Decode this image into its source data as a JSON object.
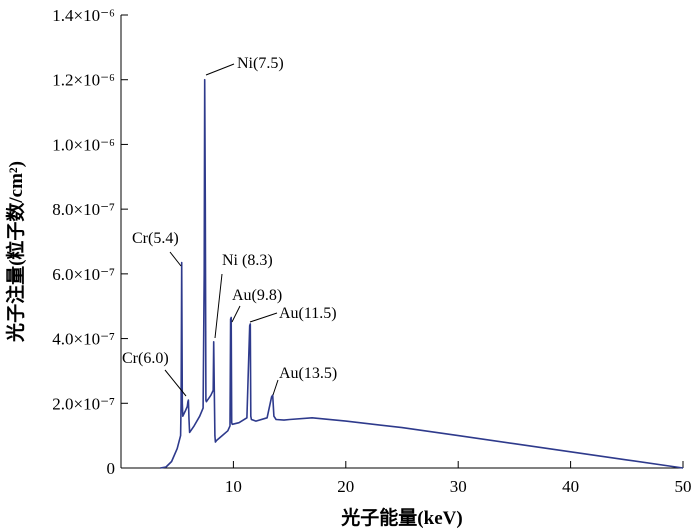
{
  "chart_data": {
    "type": "line",
    "title": "",
    "xlabel": "光子能量(keV)",
    "ylabel": "光子注量(粒子数/cm²)",
    "xlim": [
      0,
      50
    ],
    "ylim": [
      0,
      1.4e-06
    ],
    "x_ticks": [
      {
        "value": 10,
        "label": "10"
      },
      {
        "value": 20,
        "label": "20"
      },
      {
        "value": 30,
        "label": "30"
      },
      {
        "value": 40,
        "label": "40"
      },
      {
        "value": 50,
        "label": "50"
      }
    ],
    "y_ticks": [
      {
        "value": 0,
        "label": "0"
      },
      {
        "value": 2e-07,
        "label": "2.0×10⁻⁷"
      },
      {
        "value": 4e-07,
        "label": "4.0×10⁻⁷"
      },
      {
        "value": 6e-07,
        "label": "6.0×10⁻⁷"
      },
      {
        "value": 8e-07,
        "label": "8.0×10⁻⁷"
      },
      {
        "value": 1e-06,
        "label": "1.0×10⁻⁶"
      },
      {
        "value": 1.2e-06,
        "label": "1.2×10⁻⁶"
      },
      {
        "value": 1.4e-06,
        "label": "1.4×10⁻⁶"
      }
    ],
    "series": [
      {
        "color": "#2e3a8c",
        "x": [
          3.5,
          4.0,
          4.5,
          5.0,
          5.3,
          5.35,
          5.4,
          5.45,
          5.5,
          5.7,
          5.9,
          5.95,
          6.0,
          6.05,
          6.1,
          6.5,
          7.0,
          7.3,
          7.4,
          7.45,
          7.5,
          7.55,
          7.6,
          7.7,
          7.8,
          8.0,
          8.2,
          8.25,
          8.3,
          8.35,
          8.4,
          8.5,
          9.0,
          9.5,
          9.7,
          9.75,
          9.8,
          9.85,
          9.9,
          10.5,
          11.2,
          11.45,
          11.5,
          11.55,
          11.6,
          12.0,
          13.0,
          13.4,
          13.5,
          13.6,
          13.8,
          14.5,
          15.0,
          17.0,
          20.0,
          25.0,
          30.0,
          35.0,
          40.0,
          45.0,
          50.0
        ],
        "y": [
          0.0,
          3e-09,
          2e-08,
          6e-08,
          1e-07,
          2e-07,
          6.35e-07,
          2e-07,
          1.6e-07,
          1.75e-07,
          1.9e-07,
          2.05e-07,
          2.1e-07,
          1.5e-07,
          1.1e-07,
          1.3e-07,
          1.6e-07,
          1.85e-07,
          6e-07,
          1.2e-06,
          8.2e-07,
          2.1e-07,
          2.05e-07,
          2.1e-07,
          2.15e-07,
          2.25e-07,
          2.4e-07,
          3.9e-07,
          2.4e-07,
          1e-07,
          8e-08,
          8.5e-08,
          1e-07,
          1.15e-07,
          1.3e-07,
          4.6e-07,
          4.65e-07,
          1.4e-07,
          1.35e-07,
          1.4e-07,
          1.55e-07,
          4.4e-07,
          4.45e-07,
          1.6e-07,
          1.5e-07,
          1.45e-07,
          1.55e-07,
          2.2e-07,
          2.25e-07,
          1.6e-07,
          1.5e-07,
          1.48e-07,
          1.5e-07,
          1.55e-07,
          1.45e-07,
          1.25e-07,
          1e-07,
          7.5e-08,
          5e-08,
          2.5e-08,
          0.0
        ]
      }
    ],
    "annotations": [
      {
        "text": "Ni(7.5)",
        "x": 7.5,
        "y": 1.2e-06
      },
      {
        "text": "Cr(5.4)",
        "x": 5.4,
        "y": 6.35e-07
      },
      {
        "text": "Ni (8.3)",
        "x": 8.3,
        "y": 3.9e-07
      },
      {
        "text": "Au(9.8)",
        "x": 9.8,
        "y": 4.65e-07
      },
      {
        "text": "Au(11.5)",
        "x": 11.5,
        "y": 4.45e-07
      },
      {
        "text": "Cr(6.0)",
        "x": 6.0,
        "y": 2.1e-07
      },
      {
        "text": "Au(13.5)",
        "x": 13.5,
        "y": 2.25e-07
      }
    ]
  }
}
